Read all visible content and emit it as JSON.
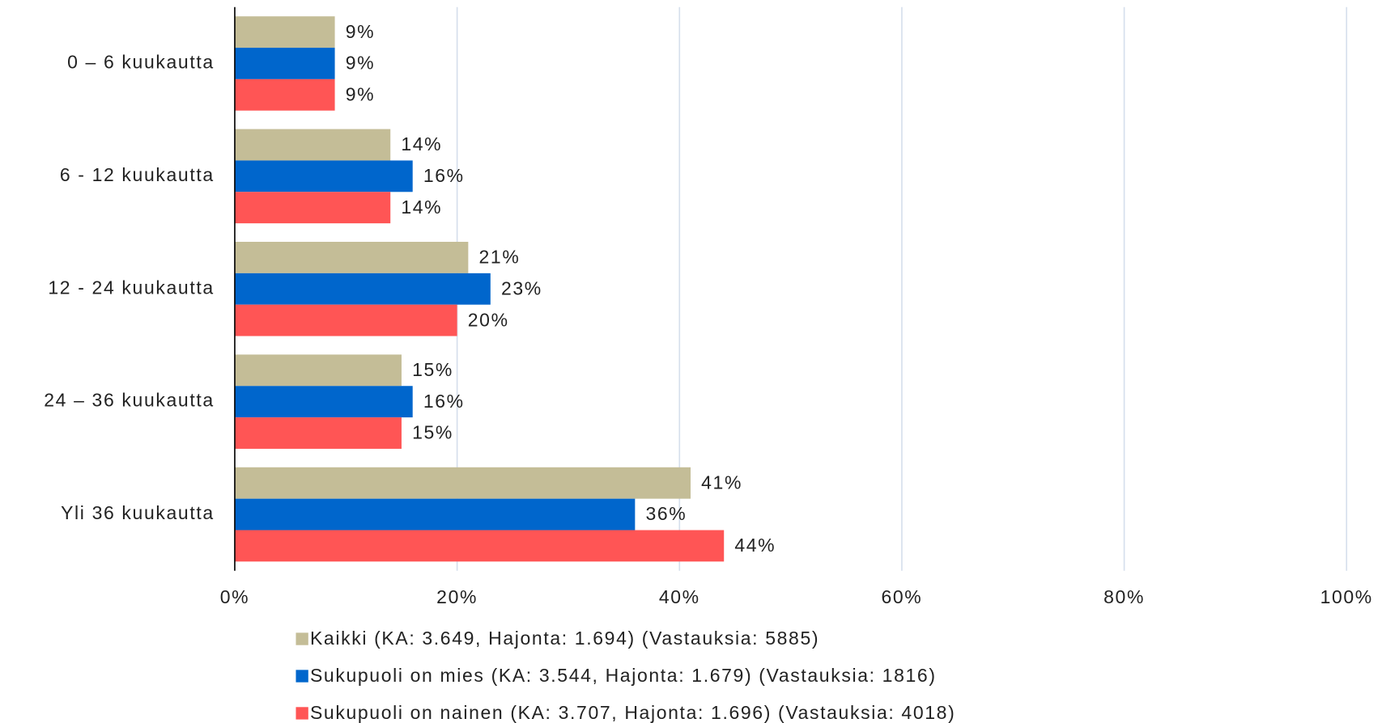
{
  "chart_data": {
    "type": "bar",
    "orientation": "horizontal",
    "categories": [
      "0 – 6 kuukautta",
      "6 - 12 kuukautta",
      "12 - 24 kuukautta",
      "24 – 36 kuukautta",
      "Yli 36 kuukautta"
    ],
    "series": [
      {
        "name": "Kaikki (KA: 3.649, Hajonta: 1.694) (Vastauksia: 5885)",
        "color": "#c4bd97",
        "values": [
          9,
          14,
          21,
          15,
          41
        ],
        "value_labels": [
          "9%",
          "14%",
          "21%",
          "15%",
          "41%"
        ]
      },
      {
        "name": "Sukupuoli on mies (KA: 3.544, Hajonta: 1.679) (Vastauksia: 1816)",
        "color": "#0066cc",
        "values": [
          9,
          16,
          23,
          16,
          36
        ],
        "value_labels": [
          "9%",
          "16%",
          "23%",
          "16%",
          "36%"
        ]
      },
      {
        "name": "Sukupuoli on nainen (KA: 3.707, Hajonta: 1.696) (Vastauksia: 4018)",
        "color": "#ff5555",
        "values": [
          9,
          14,
          20,
          15,
          44
        ],
        "value_labels": [
          "9%",
          "14%",
          "20%",
          "15%",
          "44%"
        ]
      }
    ],
    "xlim": [
      0,
      100
    ],
    "xticks": [
      {
        "value": 0,
        "label": "0%"
      },
      {
        "value": 20,
        "label": "20%"
      },
      {
        "value": 40,
        "label": "40%"
      },
      {
        "value": 60,
        "label": "60%"
      },
      {
        "value": 80,
        "label": "80%"
      },
      {
        "value": 100,
        "label": "100%"
      }
    ],
    "grid": true,
    "legend": "bottom"
  }
}
